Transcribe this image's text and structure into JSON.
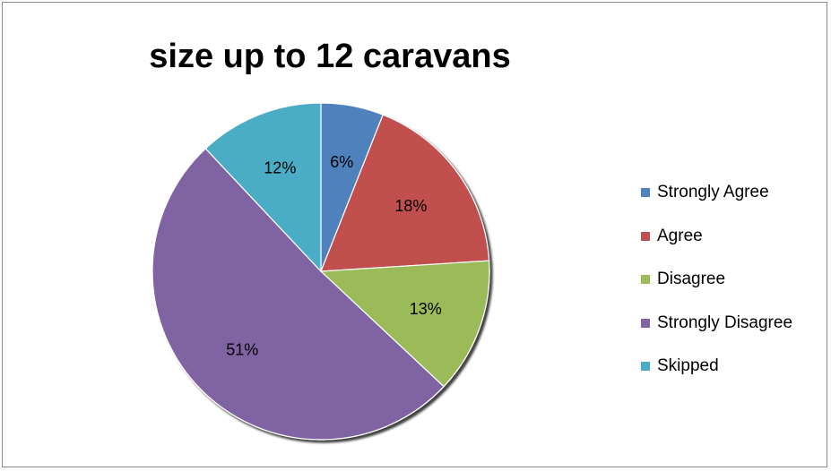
{
  "chart_data": {
    "type": "pie",
    "title": "size up to 12 caravans",
    "categories": [
      "Strongly Agree",
      "Agree",
      "Disagree",
      "Strongly Disagree",
      "Skipped"
    ],
    "values": [
      6,
      18,
      13,
      51,
      12
    ],
    "value_labels": [
      "6%",
      "18%",
      "13%",
      "51%",
      "12%"
    ],
    "colors": [
      "#4F81BD",
      "#C0504D",
      "#9BBB59",
      "#8064A2",
      "#4BACC6"
    ],
    "start_angle_deg": 0,
    "direction": "clockwise",
    "legend_position": "right"
  }
}
